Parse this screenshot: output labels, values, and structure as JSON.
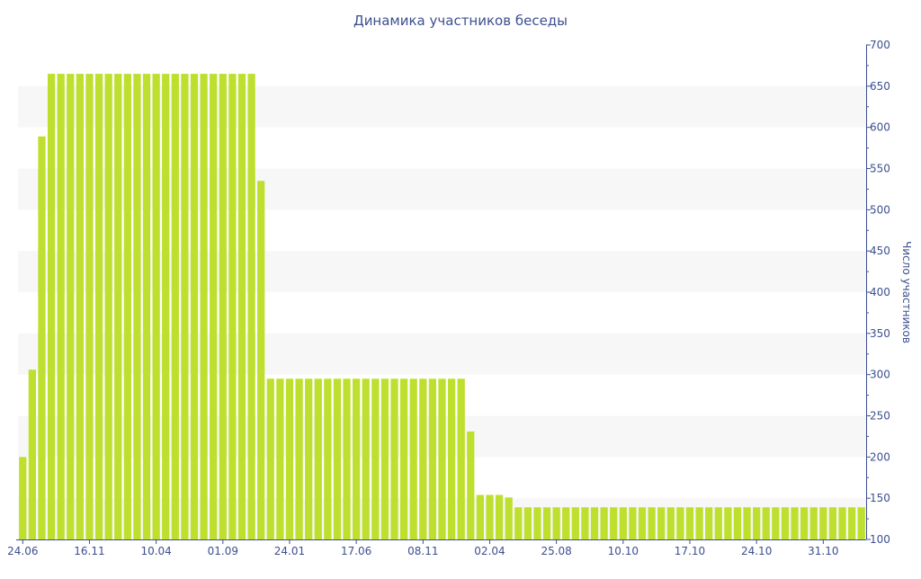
{
  "chart_data": {
    "type": "bar",
    "title": "Динамика участников беседы",
    "xlabel": "",
    "ylabel": "Число участников",
    "ylim": [
      100,
      700
    ],
    "yticks": [
      100,
      150,
      200,
      250,
      300,
      350,
      400,
      450,
      500,
      550,
      600,
      650,
      700
    ],
    "y_axis_side": "right",
    "grid": true,
    "legend": "none",
    "bar_color": "#bfdf2f",
    "band_color": "#f7f7f7",
    "axis_color": "#3d4f8f",
    "x_tick_labels": [
      {
        "label": "24.06",
        "index": 0
      },
      {
        "label": "16.11",
        "index": 7
      },
      {
        "label": "10.04",
        "index": 14
      },
      {
        "label": "01.09",
        "index": 21
      },
      {
        "label": "24.01",
        "index": 28
      },
      {
        "label": "17.06",
        "index": 35
      },
      {
        "label": "08.11",
        "index": 42
      },
      {
        "label": "02.04",
        "index": 49
      },
      {
        "label": "25.08",
        "index": 56
      },
      {
        "label": "10.10",
        "index": 63
      },
      {
        "label": "17.10",
        "index": 70
      },
      {
        "label": "24.10",
        "index": 77
      },
      {
        "label": "31.10",
        "index": 84
      }
    ],
    "values": [
      200,
      306,
      589,
      665,
      665,
      665,
      665,
      665,
      665,
      665,
      665,
      665,
      665,
      665,
      665,
      665,
      665,
      665,
      665,
      665,
      665,
      665,
      665,
      665,
      665,
      535,
      295,
      295,
      295,
      295,
      295,
      295,
      295,
      295,
      295,
      295,
      295,
      295,
      295,
      295,
      295,
      295,
      295,
      295,
      295,
      295,
      295,
      231,
      154,
      154,
      154,
      151,
      139,
      139,
      139,
      139,
      139,
      139,
      139,
      139,
      139,
      139,
      139,
      139,
      139,
      139,
      139,
      139,
      139,
      139,
      139,
      139,
      139,
      139,
      139,
      139,
      139,
      139,
      139,
      139,
      139,
      139,
      139,
      139,
      139,
      139,
      139,
      139,
      139
    ]
  }
}
